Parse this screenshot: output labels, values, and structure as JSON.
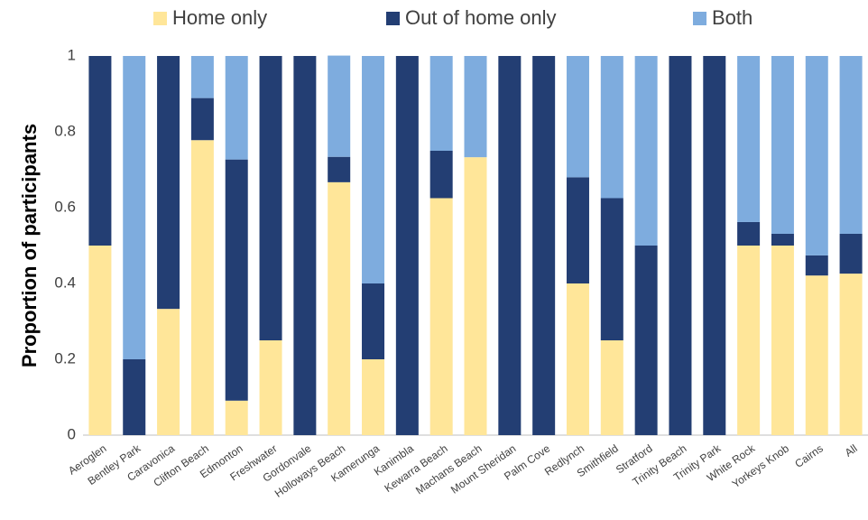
{
  "chart_data": {
    "type": "stacked_bar",
    "y_label": "Proportion of participants",
    "categories": [
      "Aeroglen",
      "Bentley Park",
      "Caravonica",
      "Clifton Beach",
      "Edmonton",
      "Freshwater",
      "Gordonvale",
      "Holloways Beach",
      "Kamerunga",
      "Kanimbla",
      "Kewarra Beach",
      "Machans Beach",
      "Mount Sheridan",
      "Palm Cove",
      "Redlynch",
      "Smithfield",
      "Stratford",
      "Trinity Beach",
      "Trinity Park",
      "White Rock",
      "Yorkeys Knob",
      "Cairns",
      "All"
    ],
    "series": [
      {
        "name": "Home only",
        "color": "#FFE699",
        "values": [
          0.5,
          0,
          0.333,
          0.778,
          0.091,
          0.25,
          0,
          0.667,
          0.2,
          0,
          0.625,
          0.733,
          0,
          0,
          0.4,
          0.25,
          0,
          0,
          0,
          0.5,
          0.5,
          0.421,
          0.426
        ]
      },
      {
        "name": "Out of home only",
        "color": "#233E73",
        "values": [
          0.5,
          0.2,
          0.667,
          0.111,
          0.636,
          0.75,
          1,
          0.067,
          0.2,
          1,
          0.125,
          0,
          1,
          1,
          0.28,
          0.375,
          0.5,
          1,
          1,
          0.062,
          0.031,
          0.053,
          0.105
        ]
      },
      {
        "name": "Both",
        "color": "#7EACDE",
        "values": [
          0,
          0.8,
          0,
          0.111,
          0.273,
          0,
          0,
          0.267,
          0.6,
          0,
          0.25,
          0.267,
          0,
          0,
          0.32,
          0.375,
          0.5,
          0,
          0,
          0.438,
          0.469,
          0.526,
          0.469
        ]
      }
    ],
    "ylim": [
      0,
      1
    ],
    "yticks": [
      0,
      0.2,
      0.4,
      0.6,
      0.8,
      1
    ],
    "grid": false,
    "legend": "top"
  }
}
